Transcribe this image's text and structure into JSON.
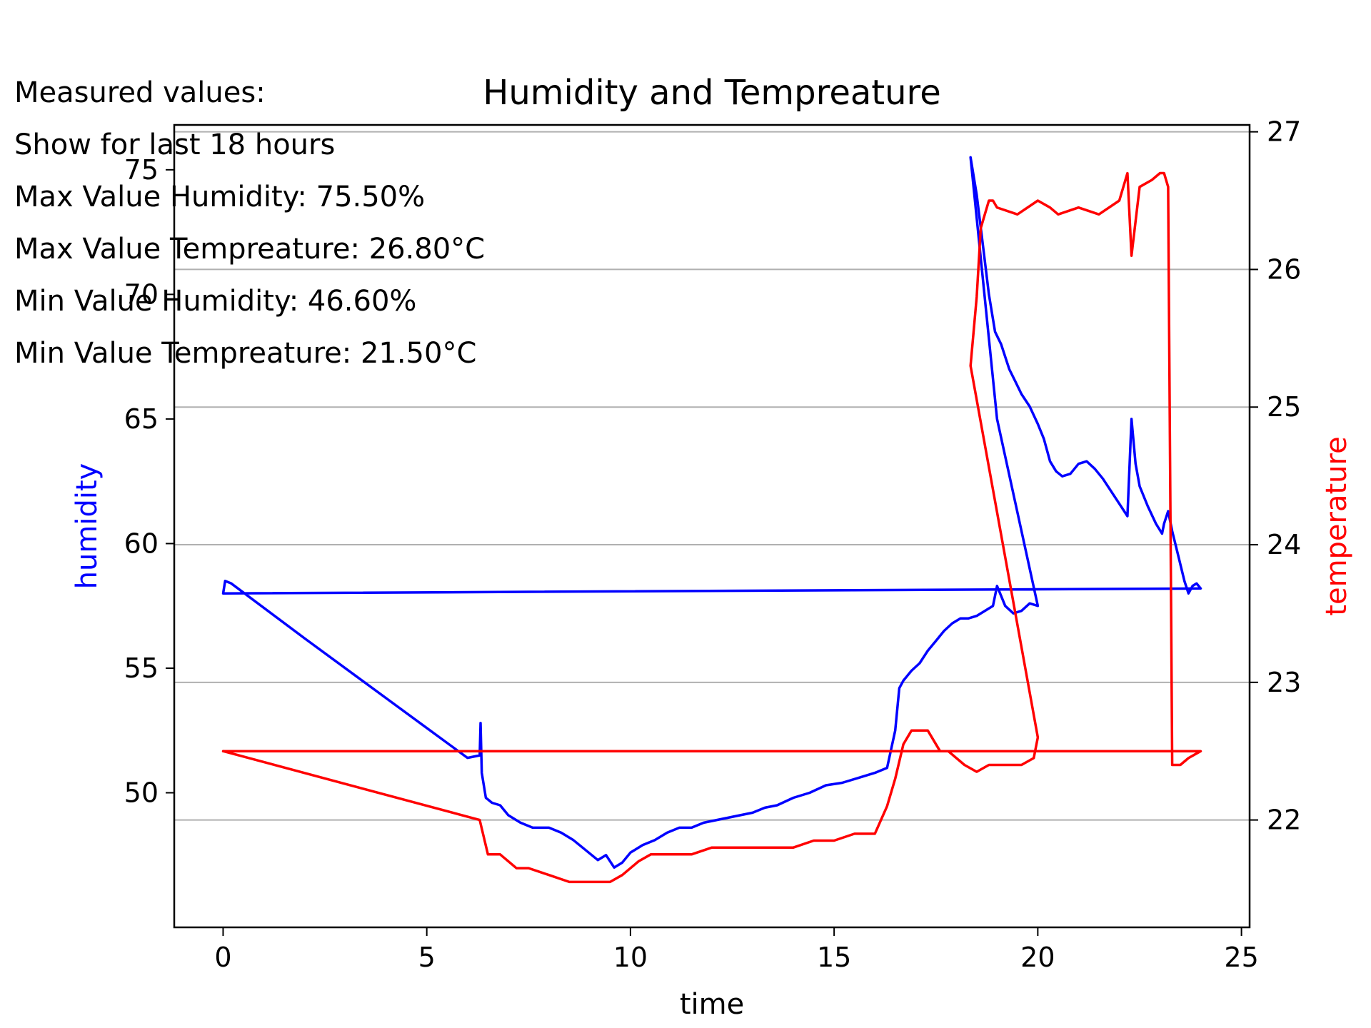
{
  "info_panel": {
    "lines": [
      "Measured values:",
      "Show for last 18 hours",
      "Max Value Humidity: 75.50%",
      "Max Value Tempreature: 26.80°C",
      "Min Value Humidity: 46.60%",
      "Min Value Tempreature: 21.50°C"
    ]
  },
  "chart_data": {
    "type": "line",
    "title": "Humidity and Tempreature",
    "xlabel": "time",
    "ylabel_left": "humidity",
    "ylabel_right": "temperature",
    "xlim": [
      -1.2,
      25.2
    ],
    "ylim_left": [
      44.6,
      76.8
    ],
    "ylim_right": [
      21.22,
      27.05
    ],
    "x_ticks": [
      0,
      5,
      10,
      15,
      20,
      25
    ],
    "y_ticks_left": [
      50,
      55,
      60,
      65,
      70,
      75
    ],
    "y_ticks_right": [
      22,
      23,
      24,
      25,
      26,
      27
    ],
    "grid": "horizontal (right axis)",
    "colors": {
      "humidity": "#0000ff",
      "temperature": "#ff0000",
      "grid": "#b0b0b0"
    },
    "series": [
      {
        "name": "humidity",
        "axis": "left",
        "color": "#0000ff",
        "x": [
          23.2,
          23.3,
          23.45,
          23.6,
          23.7,
          23.8,
          23.9,
          24.0,
          0.0,
          0.05,
          0.2,
          2.0,
          4.0,
          6.0,
          6.3,
          6.32,
          6.35,
          6.45,
          6.6,
          6.8,
          7.0,
          7.3,
          7.6,
          8.0,
          8.3,
          8.6,
          8.9,
          9.2,
          9.4,
          9.6,
          9.8,
          10.0,
          10.3,
          10.6,
          10.9,
          11.2,
          11.5,
          11.8,
          12.1,
          12.4,
          12.7,
          13.0,
          13.3,
          13.6,
          14.0,
          14.4,
          14.8,
          15.2,
          15.6,
          16.0,
          16.3,
          16.5,
          16.6,
          16.7,
          16.9,
          17.1,
          17.3,
          17.5,
          17.7,
          17.9,
          18.1,
          18.3,
          18.5,
          18.7,
          18.9,
          19.0,
          19.1,
          19.2,
          19.4,
          19.6,
          19.8,
          20.0,
          19.0,
          18.35,
          18.5,
          18.65,
          18.8,
          18.95,
          19.1,
          19.3,
          19.45,
          19.6,
          19.8,
          20.0,
          20.15,
          20.3,
          20.45,
          20.6,
          20.8,
          21.0,
          21.2,
          21.4,
          21.6,
          21.8,
          22.0,
          22.2,
          22.3,
          22.4,
          22.5,
          22.7,
          22.9,
          23.05,
          23.1,
          23.2
        ],
        "values": [
          61.3,
          60.5,
          59.5,
          58.5,
          58.0,
          58.3,
          58.4,
          58.2,
          58.0,
          58.5,
          58.4,
          56.2,
          53.8,
          51.4,
          51.5,
          52.8,
          50.8,
          49.8,
          49.6,
          49.5,
          49.1,
          48.8,
          48.6,
          48.6,
          48.4,
          48.1,
          47.7,
          47.3,
          47.5,
          47.0,
          47.2,
          47.6,
          47.9,
          48.1,
          48.4,
          48.6,
          48.6,
          48.8,
          48.9,
          49.0,
          49.1,
          49.2,
          49.4,
          49.5,
          49.8,
          50.0,
          50.3,
          50.4,
          50.6,
          50.8,
          51.0,
          52.5,
          54.2,
          54.5,
          54.9,
          55.2,
          55.7,
          56.1,
          56.5,
          56.8,
          57.0,
          57.0,
          57.1,
          57.3,
          57.5,
          58.3,
          57.9,
          57.5,
          57.2,
          57.3,
          57.6,
          57.5,
          65.0,
          75.5,
          74.0,
          72.0,
          70.0,
          68.5,
          68.0,
          67.0,
          66.5,
          66.0,
          65.5,
          64.8,
          64.2,
          63.3,
          62.9,
          62.7,
          62.8,
          63.2,
          63.3,
          63.0,
          62.6,
          62.1,
          61.6,
          61.1,
          65.0,
          63.2,
          62.3,
          61.5,
          60.8,
          60.4,
          60.8,
          61.3
        ]
      },
      {
        "name": "temperature",
        "axis": "right",
        "color": "#ff0000",
        "x": [
          0.0,
          6.3,
          6.5,
          6.8,
          7.2,
          7.5,
          8.0,
          8.5,
          9.0,
          9.5,
          9.8,
          10.2,
          10.5,
          11.0,
          11.5,
          12.0,
          12.5,
          13.0,
          14.0,
          14.5,
          15.0,
          15.5,
          16.0,
          16.3,
          16.5,
          16.7,
          16.9,
          17.3,
          17.6,
          17.8,
          18.2,
          18.5,
          18.8,
          19.0,
          19.3,
          19.6,
          19.9,
          20.0,
          18.35,
          18.5,
          18.6,
          18.7,
          18.8,
          18.9,
          19.0,
          19.5,
          20.0,
          20.3,
          20.5,
          21.0,
          21.5,
          22.0,
          22.1,
          22.2,
          22.3,
          22.5,
          22.8,
          23.0,
          23.1,
          23.2,
          23.3,
          23.5,
          23.7,
          24.0,
          0.0
        ],
        "values": [
          22.5,
          22.0,
          21.75,
          21.75,
          21.65,
          21.65,
          21.6,
          21.55,
          21.55,
          21.55,
          21.6,
          21.7,
          21.75,
          21.75,
          21.75,
          21.8,
          21.8,
          21.8,
          21.8,
          21.85,
          21.85,
          21.9,
          21.9,
          22.1,
          22.3,
          22.55,
          22.65,
          22.65,
          22.5,
          22.5,
          22.4,
          22.35,
          22.4,
          22.4,
          22.4,
          22.4,
          22.45,
          22.6,
          25.3,
          25.8,
          26.3,
          26.4,
          26.5,
          26.5,
          26.45,
          26.4,
          26.5,
          26.45,
          26.4,
          26.45,
          26.4,
          26.5,
          26.6,
          26.7,
          26.1,
          26.6,
          26.65,
          26.7,
          26.7,
          26.6,
          22.4,
          22.4,
          22.45,
          22.5,
          22.5
        ]
      }
    ]
  }
}
